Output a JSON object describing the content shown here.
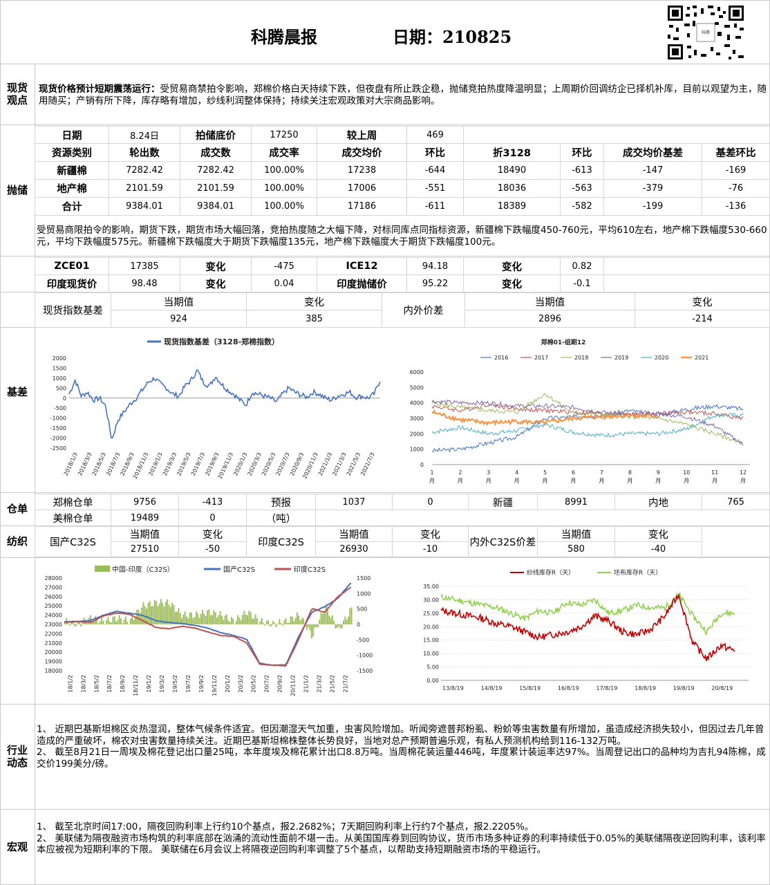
{
  "header": {
    "title": "科腾晨报",
    "date_label": "日期：210825"
  },
  "spot_view": {
    "label": "现货\n观点",
    "title": "现货价格预计短期震荡运行：",
    "text": "受贸易商禁拍令影响，郑棉价格白天持续下跌，但夜盘有所止跌企稳，抛储竞拍热度降温明显；上周期价回调纺企已择机补库，目前以观望为主，随用随买；产销有所下降，库存略有增加，纱线利润整体保持；持续关注宏观政策对大宗商品影响。"
  },
  "auction": {
    "label": "抛储",
    "row0": [
      "日期",
      "8.24日",
      "拍储底价",
      "17250",
      "较上周",
      "469"
    ],
    "headers": [
      "资源类别",
      "轮出数",
      "成交数",
      "成交率",
      "成交均价",
      "环比",
      "折3128",
      "环比",
      "成交均价基差",
      "基差环比"
    ],
    "rows": [
      [
        "新疆棉",
        "7282.42",
        "7282.42",
        "100.00%",
        "17238",
        "-644",
        "18490",
        "-613",
        "-147",
        "-169"
      ],
      [
        "地产棉",
        "2101.59",
        "2101.59",
        "100.00%",
        "17006",
        "-551",
        "18036",
        "-563",
        "-379",
        "-76"
      ],
      [
        "合计",
        "9384.01",
        "9384.01",
        "100.00%",
        "17186",
        "-611",
        "18389",
        "-582",
        "-199",
        "-136"
      ]
    ],
    "note": "受贸易商限拍令的影响，期货下跌，期货市场大幅回落，竞拍热度随之大幅下降，对标同库点同指标资源，新疆棉下跌幅度450-760元，平均610左右，地产棉下跌幅度530-660元，平均下跌幅度575元。新疆棉下跌幅度大于期货下跌幅度135元，地产棉下跌幅度大于期货下跌幅度100元。"
  },
  "futures": {
    "rows": [
      [
        "ZCE01",
        "17385",
        "变化",
        "-475",
        "ICE12",
        "94.18",
        "变化",
        "0.82"
      ],
      [
        "印度现货价",
        "98.48",
        "变化",
        "0.04",
        "印度抛储价",
        "95.22",
        "变化",
        "-0.1"
      ]
    ]
  },
  "basis": {
    "label": "基差",
    "h1": "现货指数基差",
    "cur": "当期值",
    "chg": "变化",
    "v1": "924",
    "c1": "385",
    "h2": "内外价差",
    "v2": "2896",
    "c2": "-214"
  },
  "chart1": {
    "legend": "现货指数基差（3128-郑棉指数）",
    "color": "#4472c4"
  },
  "chart2": {
    "title": "郑棉01-组期12",
    "series": [
      {
        "name": "2016",
        "color": "#4472c4"
      },
      {
        "name": "2017",
        "color": "#c0504d"
      },
      {
        "name": "2018",
        "color": "#9bbb59"
      },
      {
        "name": "2019",
        "color": "#8064a2"
      },
      {
        "name": "2020",
        "color": "#4bacc6"
      },
      {
        "name": "2021",
        "color": "#f79646"
      }
    ]
  },
  "chart_data": [
    {
      "type": "line",
      "legend": [
        "现货指数基差（3128-郑棉指数）"
      ],
      "yticks": [
        "2000",
        "1500",
        "1000",
        "500",
        "0",
        "-500",
        "-1000",
        "-1500",
        "-2000",
        "-2500"
      ],
      "ylim": [
        -2500,
        2000
      ],
      "xticks": [
        "2018/1/3",
        "2018/3/3",
        "2018/5/3",
        "2018/7/3",
        "2018/9/3",
        "2018/11/3",
        "2019/1/3",
        "2019/3/3",
        "2019/5/3",
        "2019/7/3",
        "2019/9/3",
        "2019/11/3",
        "2020/1/3",
        "2020/3/3",
        "2020/5/3",
        "2020/7/3",
        "2020/9/3",
        "2020/11/3",
        "2021/1/3",
        "2021/3/3",
        "2021/5/3",
        "2021/7/3"
      ],
      "values": [
        200,
        900,
        100,
        300,
        -100,
        0,
        -400,
        -2100,
        -1100,
        -700,
        -300,
        0,
        400,
        800,
        1000,
        700,
        500,
        200,
        100,
        600,
        900,
        1400,
        800,
        600,
        1100,
        700,
        400,
        200,
        -100,
        -350,
        300,
        200,
        100,
        0,
        -200,
        200,
        500,
        300,
        150,
        50,
        300,
        200,
        0,
        -100,
        100,
        200,
        300,
        50,
        100,
        0,
        200,
        900
      ]
    },
    {
      "type": "line",
      "title": "郑棉01-组期12",
      "legend": [
        "2016",
        "2017",
        "2018",
        "2019",
        "2020",
        "2021"
      ],
      "yticks": [
        "6000",
        "5000",
        "4000",
        "3000",
        "2000",
        "1000",
        "0"
      ],
      "ylim": [
        0,
        6000
      ],
      "xticks": [
        "1\n月",
        "2\n月",
        "3\n月",
        "4\n月",
        "5\n月",
        "6\n月",
        "7\n月",
        "8\n月",
        "9\n月",
        "10\n月",
        "11\n月",
        "12\n月"
      ],
      "series": [
        {
          "name": "2016",
          "values": [
            900,
            1000,
            1400,
            1800,
            3000,
            3100,
            3200,
            3500,
            3200,
            3600,
            3800,
            3600
          ]
        },
        {
          "name": "2017",
          "values": [
            3800,
            3500,
            3900,
            3600,
            3500,
            3400,
            3300,
            3300,
            3300,
            3400,
            3300,
            3000
          ]
        },
        {
          "name": "2018",
          "values": [
            4000,
            3700,
            3500,
            3400,
            4600,
            3300,
            3300,
            3100,
            3000,
            2600,
            2000,
            1400
          ]
        },
        {
          "name": "2019",
          "values": [
            4100,
            4000,
            4000,
            3800,
            3800,
            3700,
            3400,
            3200,
            3300,
            3100,
            2500,
            1300
          ]
        },
        {
          "name": "2020",
          "values": [
            2100,
            2400,
            2000,
            2200,
            2600,
            2100,
            1900,
            2000,
            2000,
            2300,
            3200,
            3200
          ]
        },
        {
          "name": "2021",
          "values": [
            3400,
            2900,
            2700,
            2800,
            2700,
            3000,
            3100,
            3200,
            3100
          ]
        }
      ]
    },
    {
      "type": "line",
      "legend": [
        "中国-印度（C32S）",
        "国产C32S",
        "印度C32S"
      ],
      "yticks_left": [
        "28000",
        "27000",
        "26000",
        "25000",
        "24000",
        "23000",
        "22000",
        "21000",
        "20000",
        "19000",
        "18000"
      ],
      "yticks_right": [
        "1500",
        "1000",
        "500",
        "0",
        "-500",
        "-1000",
        "-1500"
      ],
      "xticks": [
        "18/1/2",
        "18/3/2",
        "18/5/2",
        "18/7/2",
        "18/9/2",
        "18/11/2",
        "19/1/2",
        "19/3/2",
        "19/5/2",
        "19/7/2",
        "19/9/2",
        "19/11/2",
        "20/1/2",
        "20/3/2",
        "20/5/2",
        "20/7/2",
        "20/9/2",
        "20/11/2",
        "21/1/2",
        "21/3/2",
        "21/5/2",
        "21/7/2"
      ],
      "series": [
        {
          "name": "国产C32S",
          "values": [
            23300,
            23300,
            23400,
            24000,
            24400,
            24200,
            24000,
            23400,
            23200,
            23100,
            22900,
            22600,
            22100,
            21800,
            21400,
            18800,
            18600,
            18600,
            21700,
            24300,
            24900,
            25800,
            27500
          ]
        },
        {
          "name": "印度C32S",
          "values": [
            23200,
            23300,
            23200,
            23900,
            24200,
            24100,
            23400,
            22700,
            22500,
            22800,
            22600,
            22200,
            21800,
            21700,
            21000,
            18700,
            18600,
            18500,
            21400,
            24700,
            24300,
            26000,
            27000
          ]
        }
      ]
    },
    {
      "type": "line",
      "legend": [
        "纱线库存R（天）",
        "坯布库存R（天）"
      ],
      "yticks": [
        "35.00",
        "30.00",
        "25.00",
        "20.00",
        "15.00",
        "10.00",
        "5.00",
        "0.00"
      ],
      "ylim": [
        0,
        35
      ],
      "xticks": [
        "13/8/19",
        "14/8/19",
        "15/8/19",
        "16/8/19",
        "17/8/19",
        "18/8/19",
        "19/8/19",
        "20/8/19"
      ],
      "series": [
        {
          "name": "纱线库存R（天）",
          "values": [
            26,
            25,
            24,
            23,
            21,
            20,
            18,
            16,
            17,
            18,
            20,
            24,
            22,
            18,
            17,
            19,
            24,
            32,
            14,
            8,
            13,
            11
          ]
        },
        {
          "name": "坯布库存R（天）",
          "values": [
            31,
            30,
            29,
            28,
            27,
            25,
            23,
            26,
            25,
            29,
            28,
            30,
            25,
            26,
            28,
            27,
            27,
            32,
            24,
            18,
            25,
            25
          ]
        }
      ]
    }
  ],
  "warehouse": {
    "label": "仓单",
    "r1": [
      "郑棉仓单",
      "9756",
      "-413",
      "预报",
      "1037",
      "0",
      "新疆",
      "8991",
      "内地",
      "765"
    ],
    "r2": [
      "美棉仓单",
      "19489",
      "0",
      "（吨）"
    ]
  },
  "spinning": {
    "label": "纺织",
    "g1": "国产C32S",
    "g2": "印度C32S",
    "g3": "内外C32S价差",
    "cur": "当期值",
    "chg": "变化",
    "v1": "27510",
    "c1": "-50",
    "v2": "26930",
    "c2": "-10",
    "v3": "580",
    "c3": "-40"
  },
  "chart3": {
    "l1": "中国-印度（C32S）",
    "l2": "国产C32S",
    "l3": "印度C32S"
  },
  "chart4": {
    "l1": "纱线库存R（天）",
    "l2": "坯布库存R（天）"
  },
  "industry": {
    "label": "行业\n动态",
    "p1": "1、  近期巴基斯坦棉区炎热湿润，整体气候条件适宜。但因潮湿天气加重，虫害风险增加。听闻旁遮普邦粉虱、粉蚧等虫害数量有所增加，虽造成经济损失较小，但因过去几年曾造成的严重破坏，棉农对虫害数量持续关注。近期巴基斯坦棉株整体长势良好，当地对总产预期普遍乐观，有私人预测机构给到116-132万吨。",
    "p2": "2、  截至8月21日一周埃及棉花登记出口量25吨，本年度埃及棉花累计出口8.8万吨。当周棉花装运量446吨，年度累计装运率达97%。当周登记出口的品种均为吉扎94陈棉，成交价199美分/磅。"
  },
  "macro": {
    "label": "宏观",
    "p1": "1、    截至北京时间17:00，隔夜回购利率上行约10个基点，报2.2682%；7天期回购利率上行约7个基点，报2.2205%。",
    "p2": "2、    美联储为隔夜融资市场构筑的利率底部在汹涌的流动性面前不堪一击。从美国国库券到回购协议，货币市场多种证券的利率持续低于0.05%的美联储隔夜逆回购利率，该利率本应被视为短期利率的下限。 美联储在6月会议上将隔夜逆回购利率调整了5个基点，以帮助支持短期融资市场的平稳运行。"
  }
}
